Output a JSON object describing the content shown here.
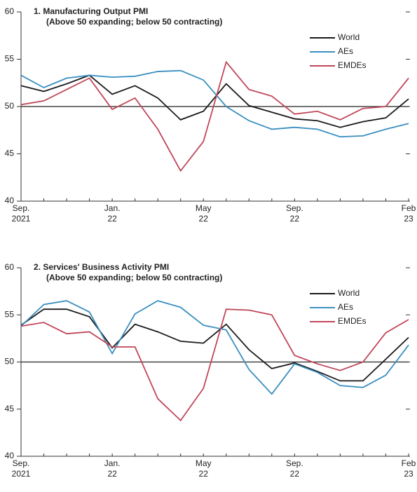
{
  "chart_data": [
    {
      "type": "line",
      "title": "1. Manufacturing Output PMI",
      "subtitle": "(Above 50 expanding; below 50 contracting)",
      "categories": [
        "Sep.\n2021",
        null,
        null,
        null,
        "Jan.\n22",
        null,
        null,
        null,
        "May\n22",
        null,
        null,
        null,
        "Sep.\n22",
        null,
        null,
        null,
        null,
        "Feb\n23"
      ],
      "series": [
        {
          "name": "World",
          "color": "#1a1a1a",
          "values": [
            52.2,
            51.6,
            52.4,
            53.3,
            51.3,
            52.2,
            50.9,
            48.6,
            49.5,
            52.4,
            50.1,
            49.4,
            48.7,
            48.5,
            47.8,
            48.4,
            48.8,
            50.8
          ]
        },
        {
          "name": "AEs",
          "color": "#3a8fc0",
          "values": [
            53.3,
            52.0,
            53.0,
            53.3,
            53.1,
            53.2,
            53.7,
            53.8,
            52.8,
            50.0,
            48.5,
            47.6,
            47.8,
            47.6,
            46.8,
            46.9,
            47.6,
            48.2
          ]
        },
        {
          "name": "EMDEs",
          "color": "#c0475a",
          "values": [
            50.2,
            50.6,
            51.8,
            53.0,
            49.7,
            50.9,
            47.6,
            43.2,
            46.3,
            54.7,
            51.8,
            51.1,
            49.2,
            49.5,
            48.6,
            49.8,
            50.0,
            53.0
          ]
        }
      ],
      "ylim": [
        40,
        60
      ],
      "yticks": [
        40,
        45,
        50,
        55,
        60
      ],
      "reference_line": 50,
      "legend": "upper right"
    },
    {
      "type": "line",
      "title": "2. Services' Business Activity PMI",
      "subtitle": "(Above 50 expanding; below 50 contracting)",
      "categories": [
        "Sep.\n2021",
        null,
        null,
        null,
        "Jan.\n22",
        null,
        null,
        null,
        "May\n22",
        null,
        null,
        null,
        "Sep.\n22",
        null,
        null,
        null,
        null,
        "Feb\n23"
      ],
      "series": [
        {
          "name": "World",
          "color": "#1a1a1a",
          "values": [
            53.9,
            55.6,
            55.6,
            54.8,
            51.5,
            54.0,
            53.2,
            52.2,
            52.0,
            54.0,
            51.3,
            49.3,
            49.9,
            49.0,
            48.0,
            48.0,
            50.3,
            52.6
          ]
        },
        {
          "name": "AEs",
          "color": "#3a8fc0",
          "values": [
            53.8,
            56.1,
            56.5,
            55.3,
            50.9,
            55.1,
            56.5,
            55.8,
            53.9,
            53.4,
            49.2,
            46.6,
            49.8,
            48.9,
            47.5,
            47.3,
            48.6,
            51.8
          ]
        },
        {
          "name": "EMDEs",
          "color": "#c0475a",
          "values": [
            53.8,
            54.2,
            53.0,
            53.2,
            51.6,
            51.6,
            46.1,
            43.8,
            47.2,
            55.6,
            55.5,
            55.0,
            50.7,
            49.8,
            49.1,
            50.0,
            53.1,
            54.5
          ]
        }
      ],
      "ylim": [
        40,
        60
      ],
      "yticks": [
        40,
        45,
        50,
        55,
        60
      ],
      "reference_line": 50,
      "legend": "upper right"
    }
  ]
}
